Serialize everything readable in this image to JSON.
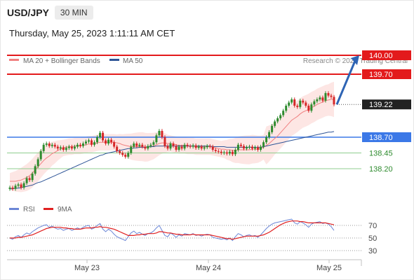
{
  "header": {
    "symbol": "USD/JPY",
    "timeframe": "30 MIN"
  },
  "datetime": "Thursday, May 25, 2023 1:11:11 AM CET",
  "legend": [
    {
      "label": "MA 20 + Bollinger Bands",
      "color": "#f08080"
    },
    {
      "label": "MA 50",
      "color": "#2e5597"
    }
  ],
  "rsi_legend": [
    {
      "label": "RSI",
      "color": "#6b86d6"
    },
    {
      "label": "9MA",
      "color": "#e02020"
    }
  ],
  "copyright": "Research © 2023 Trading Central",
  "colors": {
    "resistance": "#e31a1c",
    "pivot": "#3b78e7",
    "support": "#2e8b2e",
    "up": "#2e8b2e",
    "down": "#d62728",
    "arrow": "#2e64b4"
  },
  "chart_data": {
    "type": "candlestick",
    "symbol": "USD/JPY",
    "timeframe": "30 MIN",
    "x_tick_labels": [
      "May 23",
      "May 24",
      "May 25"
    ],
    "ylim": [
      137.75,
      140.1
    ],
    "last_price": 139.22,
    "levels": [
      {
        "label": "140.00",
        "value": 140.0,
        "kind": "resistance"
      },
      {
        "label": "139.70",
        "value": 139.7,
        "kind": "resistance"
      },
      {
        "label": "139.22",
        "value": 139.22,
        "kind": "last"
      },
      {
        "label": "138.70",
        "value": 138.7,
        "kind": "pivot"
      },
      {
        "label": "138.45",
        "value": 138.45,
        "kind": "support"
      },
      {
        "label": "138.20",
        "value": 138.2,
        "kind": "support"
      }
    ],
    "close": [
      137.9,
      137.88,
      137.93,
      137.95,
      137.9,
      137.97,
      138.05,
      138.02,
      138.12,
      138.24,
      138.35,
      138.48,
      138.58,
      138.6,
      138.56,
      138.58,
      138.55,
      138.52,
      138.54,
      138.5,
      138.53,
      138.55,
      138.52,
      138.55,
      138.58,
      138.56,
      138.6,
      138.63,
      138.65,
      138.58,
      138.62,
      138.7,
      138.77,
      138.65,
      138.6,
      138.66,
      138.62,
      138.55,
      138.48,
      138.45,
      138.42,
      138.39,
      138.45,
      138.55,
      138.6,
      138.56,
      138.58,
      138.55,
      138.52,
      138.56,
      138.58,
      138.62,
      138.73,
      138.8,
      138.7,
      138.56,
      138.52,
      138.6,
      138.56,
      138.5,
      138.55,
      138.52,
      138.58,
      138.56,
      138.55,
      138.57,
      138.53,
      138.55,
      138.52,
      138.54,
      138.56,
      138.55,
      138.5,
      138.48,
      138.47,
      138.45,
      138.46,
      138.44,
      138.47,
      138.43,
      138.5,
      138.58,
      138.56,
      138.52,
      138.54,
      138.55,
      138.52,
      138.54,
      138.5,
      138.55,
      138.62,
      138.7,
      138.78,
      138.88,
      138.95,
      139.0,
      139.05,
      139.12,
      139.2,
      139.25,
      139.3,
      139.2,
      139.18,
      139.28,
      139.25,
      139.2,
      139.12,
      139.22,
      139.27,
      139.3,
      139.33,
      139.28,
      139.4,
      139.36,
      139.34,
      139.22
    ],
    "ma20": [
      138.0,
      138.0,
      138.0,
      138.01,
      138.02,
      138.04,
      138.06,
      138.09,
      138.13,
      138.18,
      138.23,
      138.28,
      138.33,
      138.37,
      138.4,
      138.44,
      138.46,
      138.49,
      138.51,
      138.53,
      138.54,
      138.55,
      138.55,
      138.56,
      138.56,
      138.56,
      138.57,
      138.58,
      138.59,
      138.59,
      138.6,
      138.61,
      138.62,
      138.62,
      138.62,
      138.62,
      138.62,
      138.62,
      138.61,
      138.6,
      138.58,
      138.57,
      138.56,
      138.55,
      138.55,
      138.55,
      138.55,
      138.55,
      138.54,
      138.54,
      138.55,
      138.56,
      138.58,
      138.6,
      138.61,
      138.61,
      138.6,
      138.6,
      138.59,
      138.58,
      138.57,
      138.57,
      138.57,
      138.56,
      138.56,
      138.56,
      138.55,
      138.55,
      138.55,
      138.55,
      138.55,
      138.55,
      138.54,
      138.53,
      138.52,
      138.51,
      138.51,
      138.5,
      138.5,
      138.49,
      138.49,
      138.5,
      138.5,
      138.5,
      138.5,
      138.5,
      138.51,
      138.51,
      138.51,
      138.52,
      138.54,
      138.57,
      138.6,
      138.64,
      138.68,
      138.72,
      138.77,
      138.82,
      138.87,
      138.92,
      138.97,
      139.0,
      139.03,
      139.07,
      139.1,
      139.12,
      139.14,
      139.17,
      139.19,
      139.22,
      139.24,
      139.26,
      139.28,
      139.29,
      139.3,
      139.3
    ],
    "ma50": [
      137.88,
      137.88,
      137.89,
      137.89,
      137.9,
      137.91,
      137.92,
      137.93,
      137.94,
      137.96,
      137.98,
      137.99,
      138.01,
      138.03,
      138.05,
      138.07,
      138.09,
      138.11,
      138.13,
      138.15,
      138.17,
      138.19,
      138.21,
      138.23,
      138.25,
      138.27,
      138.29,
      138.31,
      138.33,
      138.35,
      138.37,
      138.39,
      138.41,
      138.42,
      138.44,
      138.45,
      138.46,
      138.47,
      138.48,
      138.49,
      138.5,
      138.51,
      138.52,
      138.52,
      138.53,
      138.53,
      138.54,
      138.54,
      138.54,
      138.55,
      138.55,
      138.55,
      138.56,
      138.56,
      138.56,
      138.56,
      138.56,
      138.56,
      138.56,
      138.56,
      138.56,
      138.56,
      138.56,
      138.56,
      138.56,
      138.56,
      138.56,
      138.56,
      138.56,
      138.56,
      138.56,
      138.56,
      138.55,
      138.55,
      138.55,
      138.55,
      138.55,
      138.54,
      138.54,
      138.54,
      138.54,
      138.54,
      138.54,
      138.54,
      138.54,
      138.54,
      138.54,
      138.54,
      138.54,
      138.54,
      138.55,
      138.56,
      138.57,
      138.58,
      138.59,
      138.6,
      138.61,
      138.62,
      138.63,
      138.64,
      138.65,
      138.66,
      138.67,
      138.68,
      138.69,
      138.7,
      138.71,
      138.72,
      138.73,
      138.74,
      138.75,
      138.76,
      138.77,
      138.78,
      138.78,
      138.79
    ],
    "rsi": {
      "levels": [
        30,
        50,
        70
      ],
      "ylim": [
        25,
        80
      ],
      "rsi": [
        50,
        48,
        52,
        54,
        51,
        55,
        58,
        56,
        60,
        63,
        66,
        68,
        70,
        71,
        67,
        69,
        66,
        64,
        65,
        62,
        64,
        65,
        62,
        64,
        66,
        64,
        67,
        69,
        70,
        64,
        66,
        70,
        73,
        64,
        60,
        64,
        61,
        56,
        52,
        50,
        48,
        46,
        52,
        58,
        61,
        57,
        59,
        56,
        54,
        57,
        58,
        61,
        66,
        70,
        62,
        54,
        52,
        58,
        55,
        51,
        55,
        53,
        57,
        56,
        55,
        57,
        54,
        55,
        53,
        55,
        56,
        55,
        51,
        50,
        49,
        48,
        49,
        47,
        50,
        46,
        52,
        57,
        55,
        52,
        54,
        55,
        53,
        54,
        51,
        55,
        60,
        65,
        69,
        72,
        74,
        75,
        76,
        77,
        78,
        79,
        80,
        74,
        72,
        76,
        74,
        71,
        67,
        72,
        74,
        75,
        76,
        73,
        74,
        72,
        68,
        62
      ],
      "ma9": [
        50,
        50,
        50,
        51,
        51,
        52,
        53,
        54,
        55,
        57,
        59,
        61,
        63,
        65,
        66,
        67,
        67,
        67,
        67,
        66,
        66,
        65,
        65,
        64,
        64,
        64,
        65,
        66,
        66,
        66,
        67,
        67,
        68,
        67,
        67,
        66,
        65,
        64,
        62,
        60,
        58,
        56,
        54,
        54,
        54,
        55,
        55,
        56,
        56,
        57,
        57,
        57,
        58,
        60,
        60,
        59,
        58,
        58,
        57,
        56,
        56,
        55,
        55,
        55,
        55,
        56,
        55,
        55,
        55,
        55,
        55,
        55,
        54,
        53,
        52,
        51,
        50,
        49,
        49,
        48,
        49,
        50,
        51,
        52,
        53,
        53,
        53,
        53,
        53,
        54,
        55,
        57,
        59,
        62,
        65,
        68,
        71,
        73,
        75,
        76,
        77,
        77,
        77,
        76,
        76,
        75,
        74,
        74,
        74,
        74,
        74,
        74,
        74,
        73,
        72,
        71
      ]
    }
  }
}
